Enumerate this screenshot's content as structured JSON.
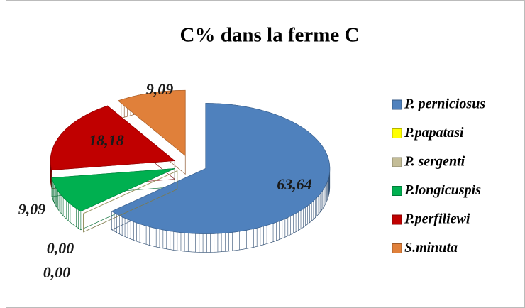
{
  "chart_data": {
    "type": "pie3d",
    "title": "C% dans la ferme C",
    "categories": [
      "P. perniciosus",
      "P.papatasi",
      "P. sergenti",
      "P.longicuspis",
      "P.perfiliewi",
      "S.minuta"
    ],
    "values": [
      63.64,
      0.0,
      0.0,
      9.09,
      18.18,
      9.09
    ],
    "value_labels": [
      "63,64",
      "0,00",
      "0,00",
      "9,09",
      "18,18",
      "9,09"
    ],
    "colors": [
      "#4f81bd",
      "#ffff00",
      "#c4bd97",
      "#00b050",
      "#c00000",
      "#e0803a"
    ],
    "legend": "right"
  }
}
